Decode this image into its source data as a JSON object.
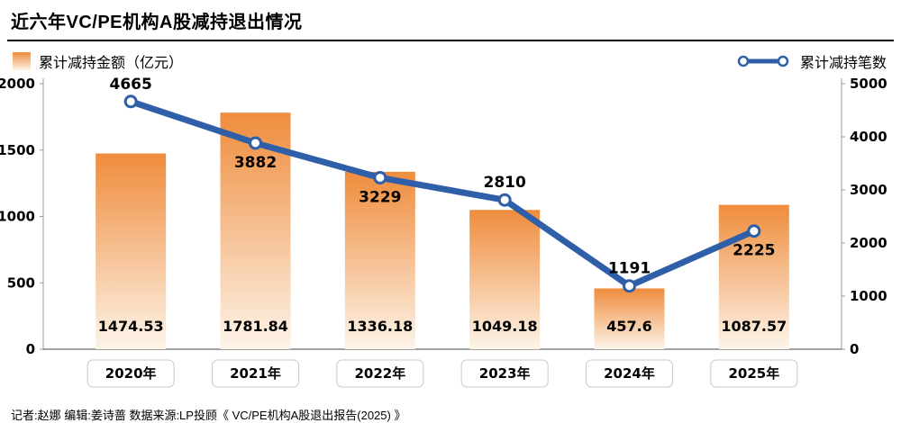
{
  "title": "近六年VC/PE机构A股减持退出情况",
  "legend": {
    "bars": "累计减持金额（亿元）",
    "line": "累计减持笔数"
  },
  "footer": "记者:赵娜  编辑:姜诗蔷  数据来源:LP投顾《 VC/PE机构A股退出报告(2025) 》",
  "colors": {
    "bar_top": "#ef8c3c",
    "bar_bottom": "#fdf4e9",
    "line": "#2e5fa8",
    "axis": "#9a9a9a"
  },
  "chart_data": {
    "type": "bar",
    "subtype": "bar+line combo, dual axis",
    "title": "近六年VC/PE机构A股减持退出情况",
    "categories": [
      "2020年",
      "2021年",
      "2022年",
      "2023年",
      "2024年",
      "2025年"
    ],
    "series": [
      {
        "name": "累计减持金额（亿元）",
        "type": "bar",
        "axis": "left",
        "values": [
          1474.53,
          1781.84,
          1336.18,
          1049.18,
          457.6,
          1087.57
        ]
      },
      {
        "name": "累计减持笔数",
        "type": "line",
        "axis": "right",
        "values": [
          4665,
          3882,
          3229,
          2810,
          1191,
          2225
        ]
      }
    ],
    "left_axis": {
      "min": 0,
      "max": 2000,
      "ticks": [
        0,
        500,
        1000,
        1500,
        2000
      ]
    },
    "right_axis": {
      "min": 0,
      "max": 5000,
      "ticks": [
        0,
        1000,
        2000,
        3000,
        4000,
        5000
      ]
    },
    "line_label_position": [
      "above",
      "below",
      "below",
      "above",
      "above",
      "below"
    ],
    "grid": false,
    "legend_position": "top (bars left, line right)"
  }
}
